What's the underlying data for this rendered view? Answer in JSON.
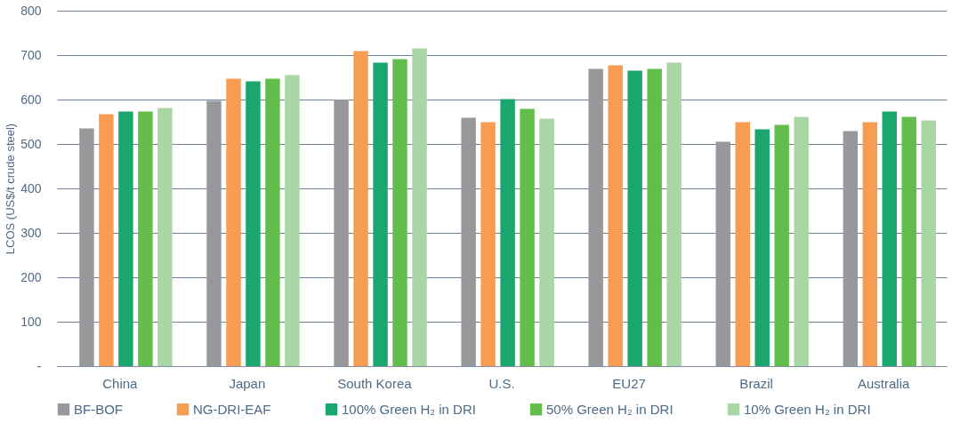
{
  "chart_data": {
    "type": "bar",
    "ylabel": "LCOS (US$/t crude steel)",
    "categories": [
      "China",
      "Japan",
      "South Korea",
      "U.S.",
      "EU27",
      "Brazil",
      "Australia"
    ],
    "series": [
      {
        "name": "BF-BOF",
        "color": "#97989c",
        "values": [
          535,
          597,
          600,
          559,
          669,
          505,
          529
        ]
      },
      {
        "name": "NG-DRI-EAF",
        "color": "#f79c50",
        "values": [
          567,
          647,
          709,
          549,
          677,
          549,
          549
        ]
      },
      {
        "name": "100% Green H₂ in DRI",
        "color": "#1aa66d",
        "values": [
          573,
          641,
          683,
          601,
          665,
          533,
          573
        ]
      },
      {
        "name": "50% Green H₂ in DRI",
        "color": "#62bd4b",
        "values": [
          573,
          647,
          691,
          579,
          669,
          543,
          561
        ]
      },
      {
        "name": "10% Green H₂ in DRI",
        "color": "#a9d6a5",
        "values": [
          581,
          655,
          715,
          557,
          683,
          561,
          553
        ]
      }
    ],
    "ylim": [
      0,
      800
    ],
    "yticks": [
      {
        "value": 0,
        "label": "-"
      },
      100,
      200,
      300,
      400,
      500,
      600,
      700,
      800
    ],
    "grid": "y",
    "legend": "bottom"
  }
}
